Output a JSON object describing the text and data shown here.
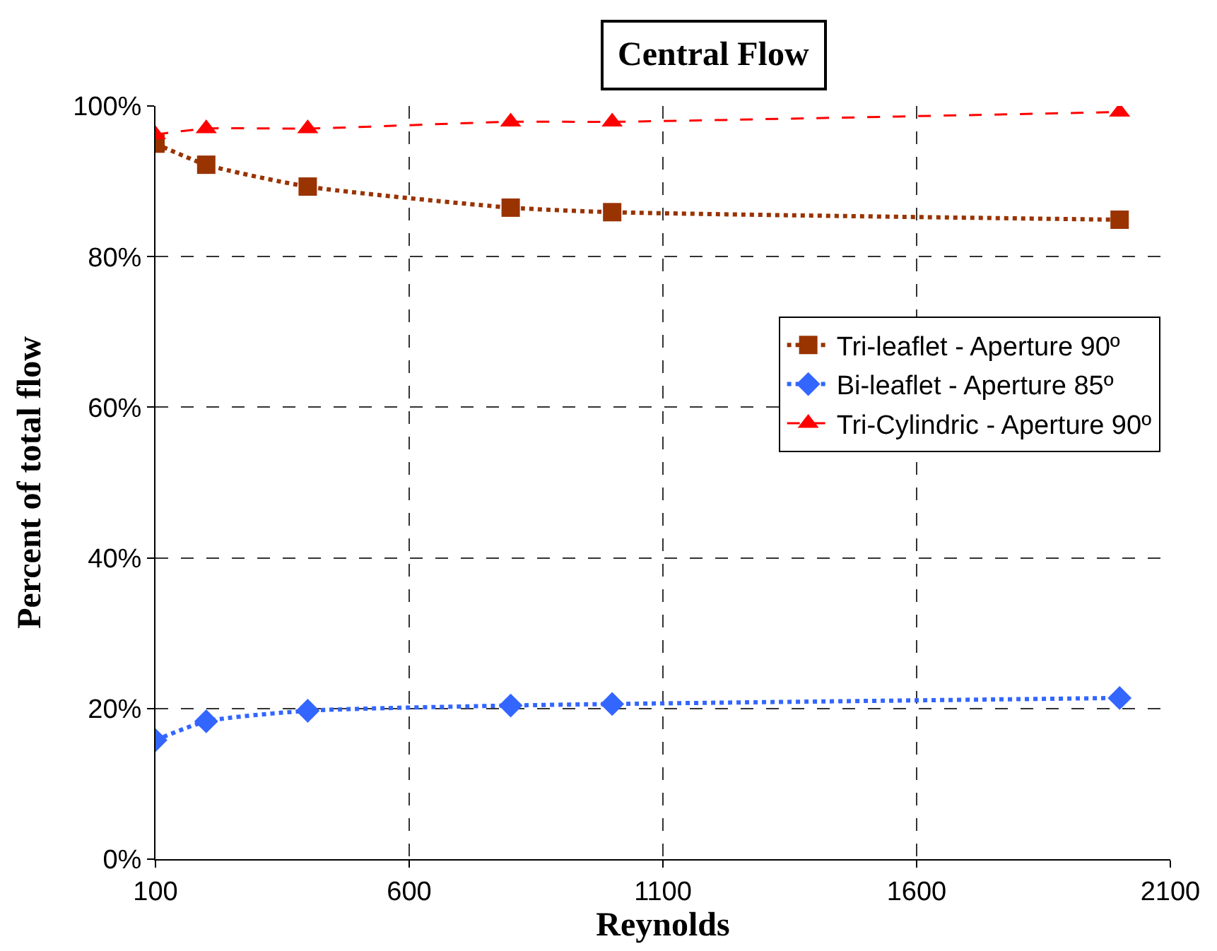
{
  "chart_data": {
    "type": "line",
    "title": "Central Flow",
    "xlabel": "Reynolds",
    "ylabel": "Percent of total flow",
    "x": [
      100,
      200,
      400,
      800,
      1000,
      2000
    ],
    "series": [
      {
        "name": "Tri-leaflet - Aperture 90º",
        "color": "#993300",
        "marker": "square",
        "line_style": "dotted",
        "values": [
          95.0,
          92.2,
          89.3,
          86.5,
          85.9,
          84.9
        ]
      },
      {
        "name": "Bi-leaflet - Aperture 85º",
        "color": "#3366ff",
        "marker": "diamond",
        "line_style": "dotted",
        "values": [
          15.8,
          18.3,
          19.7,
          20.4,
          20.6,
          21.4
        ]
      },
      {
        "name": "Tri-Cylindric - Aperture 90º",
        "color": "#ff0000",
        "marker": "triangle",
        "line_style": "dashed",
        "values": [
          96.2,
          97.0,
          97.0,
          97.9,
          97.9,
          99.2
        ]
      }
    ],
    "xlim": [
      100,
      2100
    ],
    "xticks": [
      100,
      600,
      1100,
      1600,
      2100
    ],
    "ylim": [
      0,
      100
    ],
    "yticks": [
      {
        "value": 0,
        "label": "0%"
      },
      {
        "value": 20,
        "label": "20%"
      },
      {
        "value": 40,
        "label": "40%"
      },
      {
        "value": 60,
        "label": "60%"
      },
      {
        "value": 80,
        "label": "80%"
      },
      {
        "value": 100,
        "label": "100%"
      }
    ],
    "grid": true,
    "legend": "right"
  }
}
